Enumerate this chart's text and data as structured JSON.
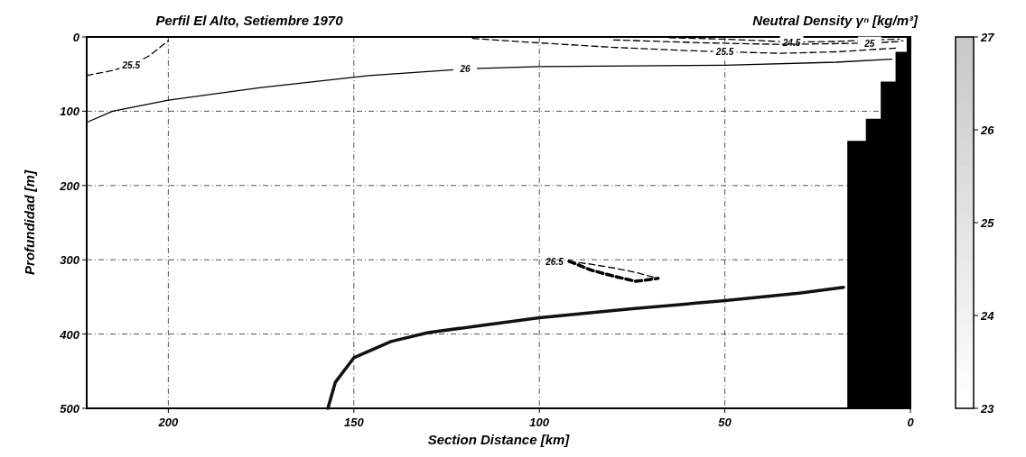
{
  "chart_data": {
    "type": "line",
    "title": "Perfil El Alto, Setiembre 1970",
    "xlabel": "Section Distance [km]",
    "ylabel": "Profundidad [m]",
    "clabel": "Neutral Density γⁿ [kg/m³]",
    "clim": [
      23,
      27
    ],
    "cticks": [
      23,
      24,
      25,
      26,
      27
    ],
    "xlim": [
      222,
      0
    ],
    "ylim": [
      500,
      0
    ],
    "xticks": [
      200,
      150,
      100,
      50,
      0
    ],
    "yticks": [
      0,
      100,
      200,
      300,
      400,
      500
    ],
    "grid": true,
    "marker": "none",
    "series": [
      {
        "name": "25.5",
        "color": "#000000",
        "line_style": "dashed",
        "x": [
          222,
          215,
          210,
          205,
          200
        ],
        "values": [
          52,
          45,
          38,
          25,
          5
        ]
      },
      {
        "name": "26",
        "color": "#000000",
        "line_style": "solid",
        "x": [
          222,
          215,
          200,
          175,
          146,
          120,
          100,
          75,
          50,
          20,
          5
        ],
        "values": [
          115,
          100,
          85,
          68,
          52,
          43,
          40,
          39,
          38,
          34,
          30
        ]
      },
      {
        "name": "24.5",
        "color": "#000000",
        "line_style": "dashed",
        "x": [
          65,
          50,
          40,
          32,
          20,
          10,
          3
        ],
        "values": [
          1,
          3,
          5,
          7,
          6,
          4,
          3
        ]
      },
      {
        "name": "25",
        "color": "#000000",
        "line_style": "dashed",
        "x": [
          80,
          55,
          35,
          20,
          11,
          6,
          3,
          2
        ],
        "values": [
          4,
          8,
          10,
          9,
          8,
          7,
          6,
          5
        ]
      },
      {
        "name": "25.5",
        "color": "#000000",
        "line_style": "dashed",
        "x": [
          118,
          100,
          80,
          62,
          50,
          35,
          20,
          4
        ],
        "values": [
          2,
          8,
          14,
          18,
          20,
          22,
          20,
          15
        ]
      },
      {
        "name": "26.5",
        "color": "#000000",
        "line_style": "dashed",
        "x": [
          92,
          86,
          80,
          74,
          68
        ],
        "values": [
          302,
          306,
          311,
          317,
          325
        ]
      },
      {
        "color": "#000000",
        "line_style": "dashed",
        "x": [
          92,
          86,
          80,
          74,
          68
        ],
        "values": [
          302,
          314,
          322,
          329,
          325
        ]
      },
      {
        "color": "#111111",
        "line_style": "solid",
        "x": [
          157,
          155,
          150,
          140,
          130,
          115,
          100,
          75,
          50,
          30,
          18
        ],
        "values": [
          500,
          465,
          432,
          410,
          398,
          388,
          378,
          366,
          355,
          345,
          337
        ]
      },
      {
        "type": "area",
        "color": "#000000",
        "x": [
          17,
          17,
          12,
          12,
          8,
          8,
          4,
          4,
          1,
          1,
          0,
          0
        ],
        "values": [
          500,
          140,
          140,
          110,
          110,
          60,
          60,
          20,
          20,
          0,
          0,
          500
        ]
      }
    ]
  }
}
